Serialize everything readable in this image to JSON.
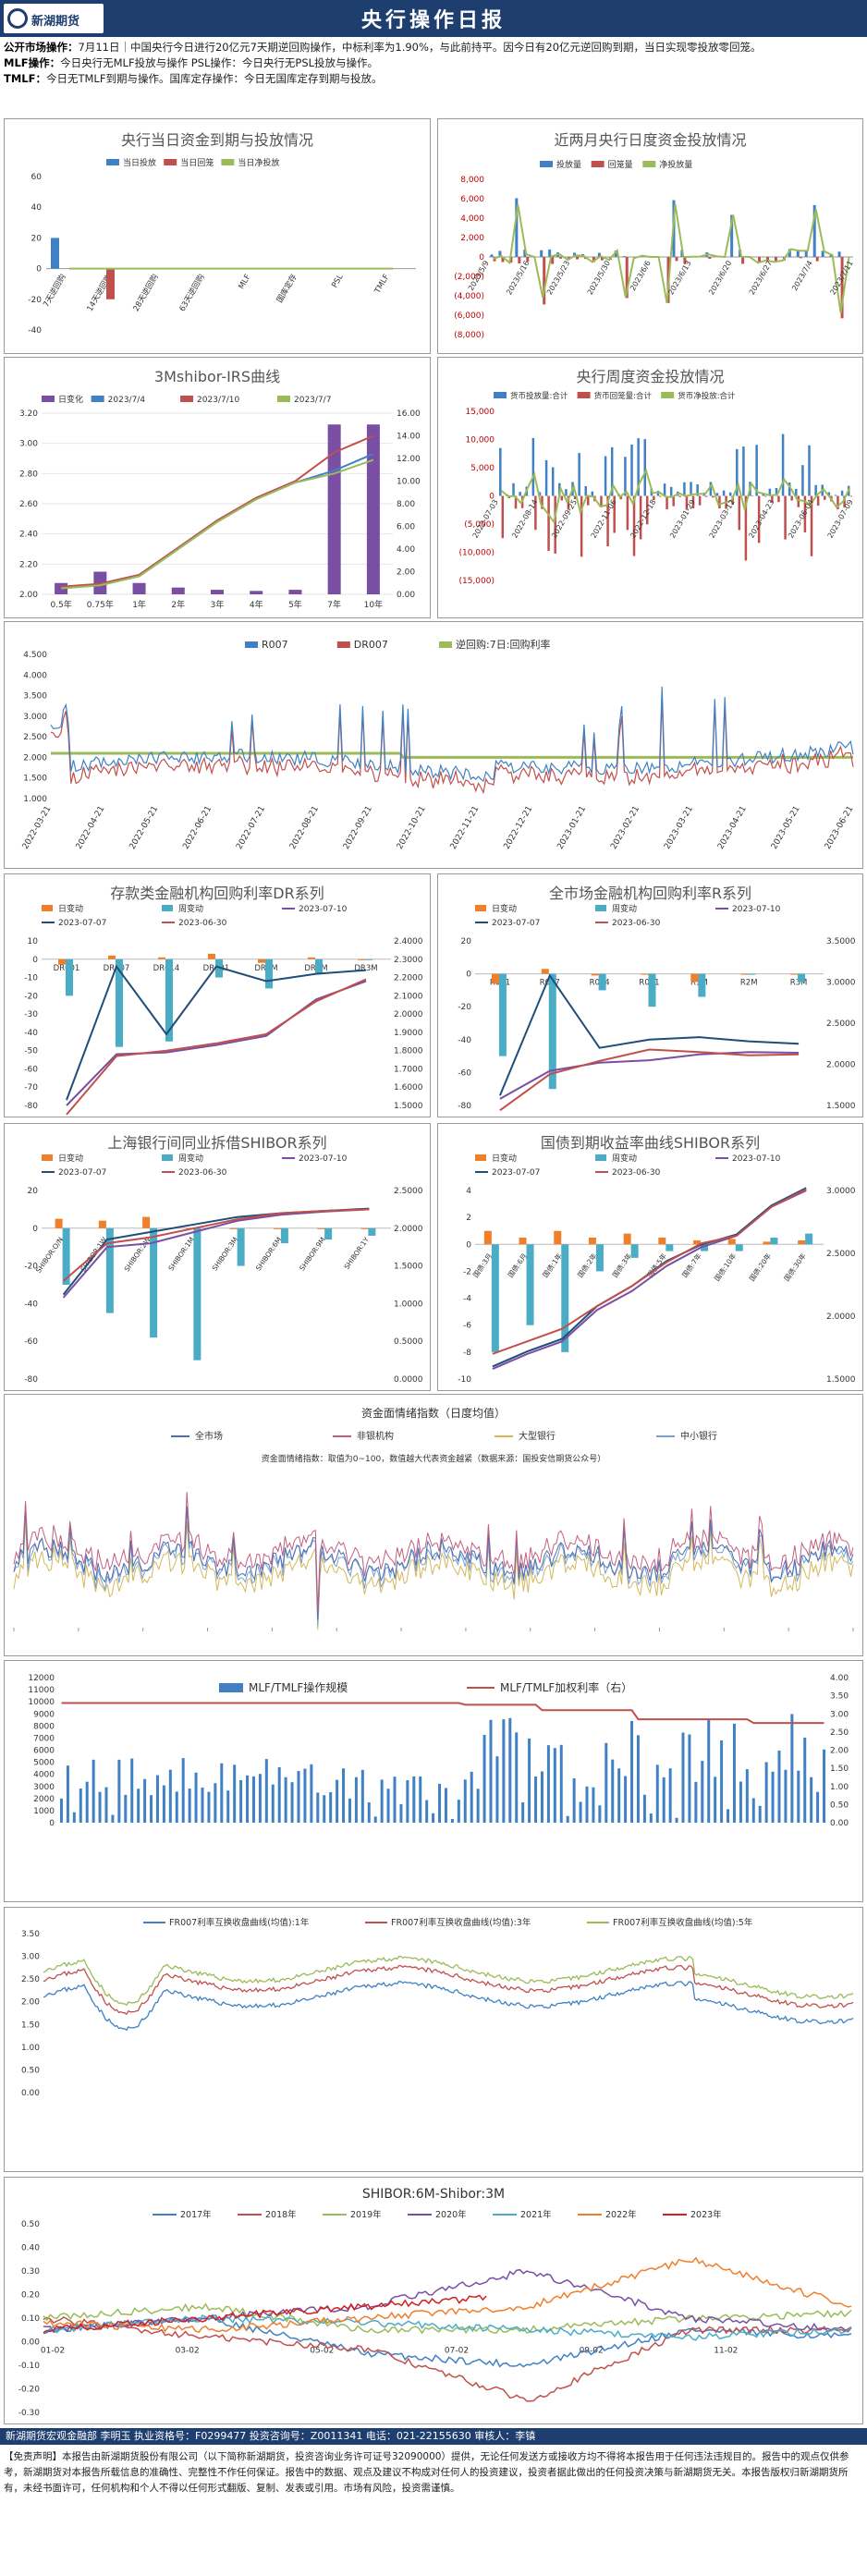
{
  "header": {
    "logo_text": "新湖期货",
    "title": "央行操作日报"
  },
  "ops": [
    {
      "label": "公开市场操作：",
      "text": "7月11日｜中国央行今日进行20亿元7天期逆回购操作，中标利率为1.90%，与此前持平。因今日有20亿元逆回购到期，当日实现零投放零回笼。"
    },
    {
      "label": "MLF操作：",
      "text": "今日央行无MLF投放与操作  PSL操作：今日央行无PSL投放与操作。"
    },
    {
      "label": "TMLF：",
      "text": "今日无TMLF到期与操作。国库定存操作：今日无国库定存到期与投放。"
    }
  ],
  "charts": [
    {
      "key": "c1",
      "type": "bar",
      "title": "央行当日资金到期与投放情况",
      "legend": [
        "当日投放",
        "当日回笼",
        "当日净投放"
      ],
      "colors": [
        "#3f81c4",
        "#c0504d",
        "#9bbb59"
      ],
      "categories": [
        "7天逆回购",
        "14天逆回购",
        "28天逆回购",
        "63天逆回购",
        "MLF",
        "国库定存",
        "PSL",
        "TMLF"
      ],
      "series": [
        {
          "name": "当日投放",
          "values": [
            20,
            0,
            0,
            0,
            0,
            0,
            0,
            0
          ]
        },
        {
          "name": "当日回笼",
          "values": [
            0,
            -20,
            0,
            0,
            0,
            0,
            0,
            0
          ]
        },
        {
          "name": "当日净投放",
          "values": [
            0,
            0,
            0,
            0,
            0,
            0,
            0,
            0
          ]
        }
      ],
      "ylim": [
        -40,
        60
      ],
      "yticks": [
        -40,
        -20,
        0,
        20,
        40,
        60
      ]
    },
    {
      "key": "c2",
      "type": "bar",
      "title": "近两月央行日度资金投放情况",
      "legend": [
        "投放量",
        "回笼量",
        "净投放量"
      ],
      "colors": [
        "#3f81c4",
        "#c0504d",
        "#9bbb59"
      ],
      "categories": [
        "2023/5/9",
        "2023/5/16",
        "2023/5/23",
        "2023/5/30",
        "2023/6/6",
        "2023/6/13",
        "2023/6/20",
        "2023/6/27",
        "2023/7/4",
        "2023/7/11"
      ],
      "yticks": [
        -8000,
        -6000,
        -4000,
        -2000,
        0,
        2000,
        4000,
        6000,
        8000
      ],
      "ylim": [
        -8000,
        8000
      ],
      "tick_labels": [
        "(8,000)",
        "(6,000)",
        "(4,000)",
        "(2,000)",
        "0",
        "2,000",
        "4,000",
        "6,000",
        "8,000"
      ]
    },
    {
      "key": "c3",
      "type": "bar",
      "title": "3Mshibor-IRS曲线",
      "legend": [
        "日变化",
        "2023/7/4",
        "2023/7/10",
        "2023/7/7"
      ],
      "colors": [
        "#7a4fa3",
        "#3f81c4",
        "#c0504d",
        "#9bbb59"
      ],
      "categories": [
        "0.5年",
        "0.75年",
        "1年",
        "2年",
        "3年",
        "4年",
        "5年",
        "7年",
        "10年"
      ],
      "yticks_left": [
        2.0,
        2.2,
        2.4,
        2.6,
        2.8,
        3.0,
        3.2
      ],
      "yticks_right": [
        0,
        2,
        4,
        6,
        8,
        10,
        12,
        14,
        16
      ],
      "series": [
        {
          "name": "日变化",
          "values": [
            1.0,
            2.0,
            1.0,
            0.6,
            0.4,
            0.3,
            0.4,
            15.0,
            15.0
          ]
        },
        {
          "name": "2023/7/4",
          "values": [
            2.04,
            2.06,
            2.12,
            2.3,
            2.48,
            2.63,
            2.74,
            2.82,
            2.93
          ]
        },
        {
          "name": "2023/7/10",
          "values": [
            2.05,
            2.07,
            2.13,
            2.31,
            2.49,
            2.64,
            2.75,
            2.94,
            3.05
          ]
        },
        {
          "name": "2023/7/7",
          "values": [
            2.04,
            2.06,
            2.12,
            2.3,
            2.48,
            2.63,
            2.74,
            2.8,
            2.89
          ]
        }
      ]
    },
    {
      "key": "c4",
      "type": "bar",
      "title": "央行周度资金投放情况",
      "legend": [
        "货币投放量:合计",
        "货币回笼量:合计",
        "货币净投放:合计"
      ],
      "colors": [
        "#3f81c4",
        "#c0504d",
        "#9bbb59"
      ],
      "categories": [
        "2022-07-03",
        "2022-08-14",
        "2022-09-25",
        "2022-11-06",
        "2022-12-18",
        "2023-01-29",
        "2023-03-12",
        "2023-04-23",
        "2023-06-04",
        "2023-07-09"
      ],
      "yticks": [
        -15000,
        -10000,
        -5000,
        0,
        5000,
        10000,
        15000
      ],
      "tick_labels": [
        "(15,000)",
        "(10,000)",
        "(5,000)",
        "0",
        "5,000",
        "10,000",
        "15,000"
      ]
    },
    {
      "key": "c5",
      "type": "line",
      "title": "",
      "legend": [
        "R007",
        "DR007",
        "逆回购:7日:回购利率"
      ],
      "colors": [
        "#3f81c4",
        "#c0504d",
        "#9bbb59"
      ],
      "categories": [
        "2022-03-21",
        "2022-04-21",
        "2022-05-21",
        "2022-06-21",
        "2022-07-21",
        "2022-08-21",
        "2022-09-21",
        "2022-10-21",
        "2022-11-21",
        "2022-12-21",
        "2023-01-21",
        "2023-02-21",
        "2023-03-21",
        "2023-04-21",
        "2023-05-21",
        "2023-06-21"
      ],
      "yticks": [
        1.0,
        1.5,
        2.0,
        2.5,
        3.0,
        3.5,
        4.0,
        4.5
      ]
    },
    {
      "key": "c6",
      "type": "combo",
      "title": "存款类金融机构回购利率DR系列",
      "legend": [
        "日变动",
        "周变动",
        "2023-07-10",
        "2023-07-07",
        "2023-06-30"
      ],
      "colors": [
        "#f07f2a",
        "#4bacc6",
        "#7a4fa3",
        "#1f4e79",
        "#c0504d"
      ],
      "categories": [
        "DR001",
        "DR007",
        "DR014",
        "DR021",
        "DR1M",
        "DR2M",
        "DR3M"
      ],
      "bp_ticks": [
        -80,
        -70,
        -60,
        -50,
        -40,
        -30,
        -20,
        -10,
        0,
        10
      ],
      "rate_ticks": [
        1.5,
        1.6,
        1.7,
        1.8,
        1.9,
        2.0,
        2.1,
        2.2,
        2.3,
        2.4
      ],
      "series": [
        {
          "name": "日变动",
          "values": [
            -3,
            2,
            1,
            3,
            -2,
            1,
            0
          ]
        },
        {
          "name": "周变动",
          "values": [
            -20,
            -48,
            -45,
            -10,
            -16,
            -8,
            0
          ]
        },
        {
          "name": "2023-07-10",
          "values": [
            1.5,
            1.78,
            1.79,
            1.83,
            1.88,
            2.08,
            2.18
          ]
        },
        {
          "name": "2023-07-07",
          "values": [
            1.53,
            2.26,
            1.89,
            2.26,
            2.18,
            2.22,
            2.24
          ]
        },
        {
          "name": "2023-06-30",
          "values": [
            1.45,
            1.77,
            1.8,
            1.84,
            1.89,
            2.07,
            2.19
          ]
        }
      ]
    },
    {
      "key": "c7",
      "type": "combo",
      "title": "全市场金融机构回购利率R系列",
      "legend": [
        "日变动",
        "周变动",
        "2023-07-10",
        "2023-07-07",
        "2023-06-30"
      ],
      "colors": [
        "#f07f2a",
        "#4bacc6",
        "#7a4fa3",
        "#1f4e79",
        "#c0504d"
      ],
      "categories": [
        "R001",
        "R007",
        "R014",
        "R021",
        "R1M",
        "R2M",
        "R3M"
      ],
      "bp_ticks": [
        -80,
        -60,
        -40,
        -20,
        0,
        20
      ],
      "rate_ticks": [
        1.5,
        2.0,
        2.5,
        3.0,
        3.5
      ],
      "series": [
        {
          "name": "日变动",
          "values": [
            -6,
            3,
            -1,
            0,
            -5,
            0,
            0
          ]
        },
        {
          "name": "周变动",
          "values": [
            -50,
            -70,
            -10,
            -20,
            -14,
            0,
            -5
          ]
        },
        {
          "name": "2023-07-10",
          "values": [
            1.58,
            1.92,
            2.02,
            2.05,
            2.12,
            2.15,
            2.14
          ]
        },
        {
          "name": "2023-07-07",
          "values": [
            1.62,
            3.08,
            2.2,
            2.3,
            2.33,
            2.28,
            2.25
          ]
        },
        {
          "name": "2023-06-30",
          "values": [
            1.44,
            1.88,
            2.04,
            2.18,
            2.15,
            2.11,
            2.12
          ]
        }
      ]
    },
    {
      "key": "c8",
      "type": "combo",
      "title": "上海银行间同业拆借SHIBOR系列",
      "legend": [
        "日变动",
        "周变动",
        "2023-07-10",
        "2023-07-07",
        "2023-06-30"
      ],
      "colors": [
        "#f07f2a",
        "#4bacc6",
        "#7a4fa3",
        "#1f4e79",
        "#c0504d"
      ],
      "categories": [
        "SHIBOR:O/N",
        "SHIBOR:1W",
        "SHIBOR:2W",
        "SHIBOR:1M",
        "SHIBOR:3M",
        "SHIBOR:6M",
        "SHIBOR:9M",
        "SHIBOR:1Y"
      ],
      "bp_ticks": [
        -80,
        -60,
        -40,
        -20,
        0,
        20
      ],
      "rate_ticks": [
        0.0,
        0.5,
        1.0,
        1.5,
        2.0,
        2.5
      ],
      "series": [
        {
          "name": "日变动",
          "values": [
            5,
            4,
            6,
            0,
            0,
            0,
            0,
            0
          ]
        },
        {
          "name": "周变动",
          "values": [
            -30,
            -45,
            -58,
            -70,
            -20,
            -8,
            -6,
            -4
          ]
        },
        {
          "name": "2023-07-10",
          "values": [
            1.08,
            1.75,
            1.8,
            1.95,
            2.1,
            2.18,
            2.22,
            2.25
          ]
        },
        {
          "name": "2023-07-07",
          "values": [
            1.12,
            1.85,
            1.95,
            2.05,
            2.15,
            2.2,
            2.23,
            2.26
          ]
        },
        {
          "name": "2023-06-30",
          "values": [
            1.3,
            1.8,
            1.88,
            2.0,
            2.12,
            2.2,
            2.23,
            2.25
          ]
        }
      ]
    },
    {
      "key": "c9",
      "type": "combo",
      "title": "国债到期收益率曲线SHIBOR系列",
      "legend": [
        "日变动",
        "周变动",
        "2023-07-10",
        "2023-07-07",
        "2023-06-30"
      ],
      "colors": [
        "#f07f2a",
        "#4bacc6",
        "#7a4fa3",
        "#1f4e79",
        "#c0504d"
      ],
      "categories": [
        "国债:3月",
        "国债:6月",
        "国债:1年",
        "国债:2年",
        "国债:3年",
        "国债:5年",
        "国债:7年",
        "国债:10年",
        "国债:20年",
        "国债:30年"
      ],
      "bp_ticks": [
        -10,
        -8,
        -6,
        -4,
        -2,
        0,
        2,
        4
      ],
      "rate_ticks": [
        1.5,
        2.0,
        2.5,
        3.0
      ],
      "series": [
        {
          "name": "日变动",
          "values": [
            1,
            0.5,
            1,
            0.5,
            0.8,
            0.5,
            0.3,
            0.4,
            0.2,
            0.3
          ]
        },
        {
          "name": "周变动",
          "values": [
            -8,
            -6,
            -8,
            -2,
            -1,
            -0.5,
            -0.5,
            -0.5,
            0.5,
            0.8
          ]
        },
        {
          "name": "2023-07-10",
          "values": [
            1.58,
            1.7,
            1.8,
            2.05,
            2.2,
            2.4,
            2.55,
            2.64,
            2.87,
            3.0
          ]
        },
        {
          "name": "2023-07-07",
          "values": [
            1.6,
            1.72,
            1.82,
            2.08,
            2.24,
            2.44,
            2.57,
            2.65,
            2.88,
            3.02
          ]
        },
        {
          "name": "2023-06-30",
          "values": [
            1.7,
            1.8,
            1.9,
            2.08,
            2.24,
            2.43,
            2.58,
            2.64,
            2.87,
            3.01
          ]
        }
      ]
    },
    {
      "key": "c10",
      "type": "line",
      "title": "资金面情绪指数（日度均值）",
      "subtitle": "资金面情绪指数：取值为0~100，数值越大代表资金越紧（数据来源：国投安信期货公众号）",
      "legend": [
        "全市场",
        "非银机构",
        "大型银行",
        "中小银行"
      ],
      "colors": [
        "#4f6fae",
        "#c06080",
        "#d4b85a",
        "#7aa0d0"
      ]
    },
    {
      "key": "c11",
      "type": "combo",
      "title": "MLF/TMLF操作规模",
      "legend": [
        "MLF/TMLF操作规模",
        "MLF/TMLF加权利率（右）"
      ],
      "colors": [
        "#3f81c4",
        "#c0504d"
      ],
      "yticks": [
        0,
        1000,
        2000,
        3000,
        4000,
        5000,
        6000,
        7000,
        8000,
        9000,
        10000,
        11000,
        12000
      ],
      "rate_ticks": [
        0.0,
        0.5,
        1.0,
        1.5,
        2.0,
        2.5,
        3.0,
        3.5,
        4.0
      ]
    },
    {
      "key": "c12",
      "type": "line",
      "title": "",
      "legend": [
        "FR007利率互换收盘曲线(均值):1年",
        "FR007利率互换收盘曲线(均值):3年",
        "FR007利率互换收盘曲线(均值):5年"
      ],
      "colors": [
        "#3f81c4",
        "#c0504d",
        "#9bbb59"
      ],
      "yticks": [
        0.0,
        0.5,
        1.0,
        1.5,
        2.0,
        2.5,
        3.0,
        3.5
      ]
    },
    {
      "key": "c13",
      "type": "line",
      "title": "SHIBOR:6M-Shibor:3M",
      "legend": [
        "2017年",
        "2018年",
        "2019年",
        "2020年",
        "2021年",
        "2022年",
        "2023年"
      ],
      "colors": [
        "#3f81c4",
        "#c0504d",
        "#9bbb59",
        "#7a4fa3",
        "#4bacc6",
        "#f07f2a",
        "#d02020"
      ],
      "categories": [
        "01-02",
        "03-02",
        "05-02",
        "07-02",
        "09-02",
        "11-02"
      ],
      "yticks": [
        -0.3,
        -0.2,
        -0.1,
        0.0,
        0.1,
        0.2,
        0.3,
        0.4,
        0.5
      ]
    }
  ],
  "footer": {
    "line": "新湖期货宏观金融部 李明玉  执业资格号：F0299477  投资咨询号：Z0011341  电话：021-22155630  审核人：李镇",
    "disclaimer_title": "【免责声明】",
    "disclaimer": "本报告由新湖期货股份有限公司（以下简称新湖期货，投资咨询业务许可证号32090000）提供，无论任何发送方或接收方均不得将本报告用于任何违法违规目的。报告中的观点仅供参考，新湖期货对本报告所载信息的准确性、完整性不作任何保证。报告中的数据、观点及建议不构成对任何人的投资建议，投资者据此做出的任何投资决策与新湖期货无关。本报告版权归新湖期货所有，未经书面许可，任何机构和个人不得以任何形式翻版、复制、发表或引用。市场有风险，投资需谨慎。"
  }
}
